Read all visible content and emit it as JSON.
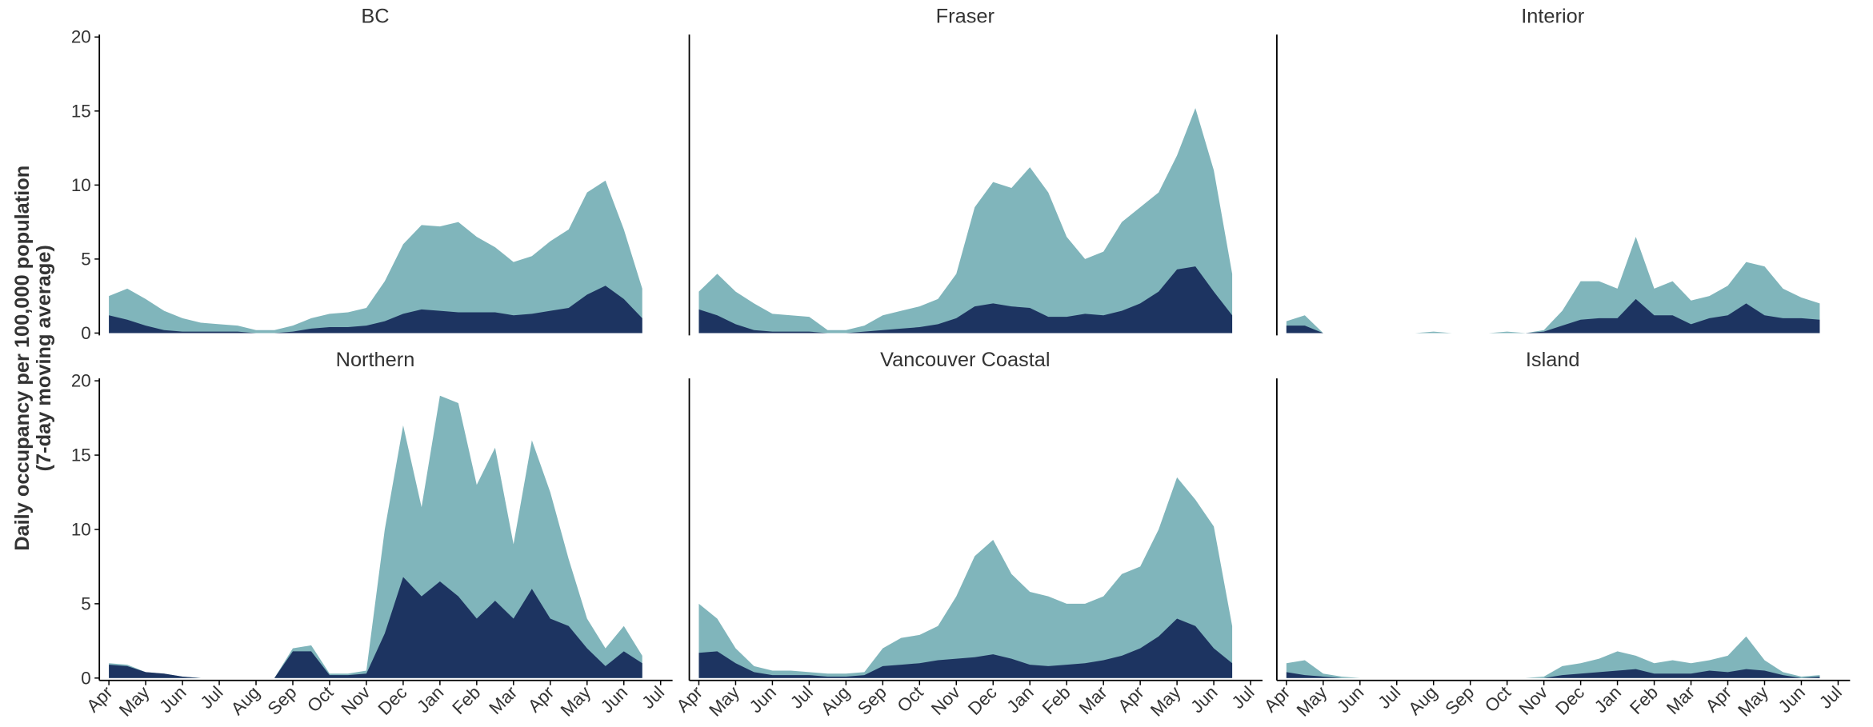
{
  "y_axis_title": [
    "Daily occupancy per 100,000 population",
    "(7-day moving average)"
  ],
  "chart_data": [
    {
      "type": "area",
      "title": "BC",
      "x": [
        0,
        0.5,
        1,
        1.5,
        2,
        2.5,
        3,
        3.5,
        4,
        4.5,
        5,
        5.5,
        6,
        6.5,
        7,
        7.5,
        8,
        8.5,
        9,
        9.5,
        10,
        10.5,
        11,
        11.5,
        12,
        12.5,
        13,
        13.5,
        14,
        14.5
      ],
      "series": [
        {
          "color": "#80b5bb",
          "values": [
            2.5,
            3.0,
            2.3,
            1.5,
            1.0,
            0.7,
            0.6,
            0.5,
            0.2,
            0.2,
            0.5,
            1.0,
            1.3,
            1.4,
            1.7,
            3.5,
            6.0,
            7.3,
            7.2,
            7.5,
            6.5,
            5.8,
            4.8,
            5.2,
            6.2,
            7.0,
            9.5,
            10.3,
            7.0,
            3.0
          ]
        },
        {
          "color": "#1d3461",
          "values": [
            1.2,
            0.9,
            0.5,
            0.2,
            0.1,
            0.1,
            0.1,
            0.1,
            0,
            0,
            0.1,
            0.3,
            0.4,
            0.4,
            0.5,
            0.8,
            1.3,
            1.6,
            1.5,
            1.4,
            1.4,
            1.4,
            1.2,
            1.3,
            1.5,
            1.7,
            2.6,
            3.2,
            2.3,
            1.0
          ]
        }
      ],
      "xlim": [
        0,
        15
      ],
      "ylim": [
        0,
        20
      ],
      "yticks": [
        0,
        5,
        10,
        15,
        20
      ]
    },
    {
      "type": "area",
      "title": "Fraser",
      "x": [
        0,
        0.5,
        1,
        1.5,
        2,
        2.5,
        3,
        3.5,
        4,
        4.5,
        5,
        5.5,
        6,
        6.5,
        7,
        7.5,
        8,
        8.5,
        9,
        9.5,
        10,
        10.5,
        11,
        11.5,
        12,
        12.5,
        13,
        13.5,
        14,
        14.5
      ],
      "series": [
        {
          "color": "#80b5bb",
          "values": [
            2.8,
            4.0,
            2.8,
            2.0,
            1.3,
            1.2,
            1.1,
            0.2,
            0.2,
            0.5,
            1.2,
            1.5,
            1.8,
            2.3,
            4.0,
            8.5,
            10.2,
            9.8,
            11.2,
            9.5,
            6.5,
            5.0,
            5.5,
            7.5,
            8.5,
            9.5,
            12.0,
            15.2,
            11.0,
            4.0
          ]
        },
        {
          "color": "#1d3461",
          "values": [
            1.6,
            1.2,
            0.6,
            0.2,
            0.1,
            0.1,
            0.1,
            0,
            0,
            0.1,
            0.2,
            0.3,
            0.4,
            0.6,
            1.0,
            1.8,
            2.0,
            1.8,
            1.7,
            1.1,
            1.1,
            1.3,
            1.2,
            1.5,
            2.0,
            2.8,
            4.3,
            4.5,
            2.8,
            1.2
          ]
        }
      ],
      "xlim": [
        0,
        15
      ],
      "ylim": [
        0,
        20
      ]
    },
    {
      "type": "area",
      "title": "Interior",
      "x": [
        0,
        0.5,
        1,
        1.5,
        2,
        2.5,
        3,
        3.5,
        4,
        4.5,
        5,
        5.5,
        6,
        6.5,
        7,
        7.5,
        8,
        8.5,
        9,
        9.5,
        10,
        10.5,
        11,
        11.5,
        12,
        12.5,
        13,
        13.5,
        14,
        14.5
      ],
      "series": [
        {
          "color": "#80b5bb",
          "values": [
            0.8,
            1.2,
            0,
            0,
            0,
            0,
            0,
            0,
            0.1,
            0,
            0,
            0,
            0.1,
            0,
            0.2,
            1.5,
            3.5,
            3.5,
            3.0,
            6.5,
            3.0,
            3.5,
            2.2,
            2.5,
            3.2,
            4.8,
            4.5,
            3.0,
            2.4,
            2.0
          ]
        },
        {
          "color": "#1d3461",
          "values": [
            0.5,
            0.5,
            0,
            0,
            0,
            0,
            0,
            0,
            0,
            0,
            0,
            0,
            0,
            0,
            0.1,
            0.5,
            0.9,
            1.0,
            1.0,
            2.3,
            1.2,
            1.2,
            0.6,
            1.0,
            1.2,
            2.0,
            1.2,
            1.0,
            1.0,
            0.9
          ]
        }
      ],
      "xlim": [
        0,
        15
      ],
      "ylim": [
        0,
        20
      ]
    },
    {
      "type": "area",
      "title": "Northern",
      "x": [
        0,
        0.5,
        1,
        1.5,
        2,
        2.5,
        3,
        3.5,
        4,
        4.5,
        5,
        5.5,
        6,
        6.5,
        7,
        7.5,
        8,
        8.5,
        9,
        9.5,
        10,
        10.5,
        11,
        11.5,
        12,
        12.5,
        13,
        13.5,
        14,
        14.5
      ],
      "series": [
        {
          "color": "#80b5bb",
          "values": [
            1.0,
            0.9,
            0.4,
            0.3,
            0.1,
            0,
            0,
            0,
            0,
            0,
            2.0,
            2.2,
            0.3,
            0.3,
            0.5,
            10,
            17,
            11.5,
            19,
            18.5,
            13,
            15.5,
            9,
            16,
            12.5,
            8,
            4,
            2,
            3.5,
            1.5
          ]
        },
        {
          "color": "#1d3461",
          "values": [
            0.9,
            0.8,
            0.4,
            0.3,
            0.1,
            0,
            0,
            0,
            0,
            0,
            1.8,
            1.8,
            0.2,
            0.2,
            0.3,
            3.0,
            6.8,
            5.5,
            6.5,
            5.5,
            4.0,
            5.2,
            4.0,
            6.0,
            4.0,
            3.5,
            2.0,
            0.8,
            1.8,
            1.0
          ]
        }
      ],
      "xlim": [
        0,
        15
      ],
      "ylim": [
        0,
        20
      ],
      "yticks": [
        0,
        5,
        10,
        15,
        20
      ],
      "xticks": [
        {
          "value": 0,
          "label": "Apr"
        },
        {
          "value": 1,
          "label": "May"
        },
        {
          "value": 2,
          "label": "Jun"
        },
        {
          "value": 3,
          "label": "Jul"
        },
        {
          "value": 4,
          "label": "Aug"
        },
        {
          "value": 5,
          "label": "Sep"
        },
        {
          "value": 6,
          "label": "Oct"
        },
        {
          "value": 7,
          "label": "Nov"
        },
        {
          "value": 8,
          "label": "Dec"
        },
        {
          "value": 9,
          "label": "Jan"
        },
        {
          "value": 10,
          "label": "Feb"
        },
        {
          "value": 11,
          "label": "Mar"
        },
        {
          "value": 12,
          "label": "Apr"
        },
        {
          "value": 13,
          "label": "May"
        },
        {
          "value": 14,
          "label": "Jun"
        },
        {
          "value": 15,
          "label": "Jul"
        }
      ]
    },
    {
      "type": "area",
      "title": "Vancouver Coastal",
      "x": [
        0,
        0.5,
        1,
        1.5,
        2,
        2.5,
        3,
        3.5,
        4,
        4.5,
        5,
        5.5,
        6,
        6.5,
        7,
        7.5,
        8,
        8.5,
        9,
        9.5,
        10,
        10.5,
        11,
        11.5,
        12,
        12.5,
        13,
        13.5,
        14,
        14.5
      ],
      "series": [
        {
          "color": "#80b5bb",
          "values": [
            5.0,
            4.0,
            2.0,
            0.8,
            0.5,
            0.5,
            0.4,
            0.3,
            0.3,
            0.4,
            2.0,
            2.7,
            2.9,
            3.5,
            5.5,
            8.2,
            9.3,
            7.0,
            5.8,
            5.5,
            5.0,
            5.0,
            5.5,
            7.0,
            7.5,
            10.0,
            13.5,
            12.0,
            10.2,
            3.5
          ]
        },
        {
          "color": "#1d3461",
          "values": [
            1.7,
            1.8,
            1.0,
            0.4,
            0.2,
            0.2,
            0.2,
            0.1,
            0.1,
            0.2,
            0.8,
            0.9,
            1.0,
            1.2,
            1.3,
            1.4,
            1.6,
            1.3,
            0.9,
            0.8,
            0.9,
            1.0,
            1.2,
            1.5,
            2.0,
            2.8,
            4.0,
            3.5,
            2.0,
            1.0
          ]
        }
      ],
      "xlim": [
        0,
        15
      ],
      "ylim": [
        0,
        20
      ],
      "xticks": [
        {
          "value": 0,
          "label": "Apr"
        },
        {
          "value": 1,
          "label": "May"
        },
        {
          "value": 2,
          "label": "Jun"
        },
        {
          "value": 3,
          "label": "Jul"
        },
        {
          "value": 4,
          "label": "Aug"
        },
        {
          "value": 5,
          "label": "Sep"
        },
        {
          "value": 6,
          "label": "Oct"
        },
        {
          "value": 7,
          "label": "Nov"
        },
        {
          "value": 8,
          "label": "Dec"
        },
        {
          "value": 9,
          "label": "Jan"
        },
        {
          "value": 10,
          "label": "Feb"
        },
        {
          "value": 11,
          "label": "Mar"
        },
        {
          "value": 12,
          "label": "Apr"
        },
        {
          "value": 13,
          "label": "May"
        },
        {
          "value": 14,
          "label": "Jun"
        },
        {
          "value": 15,
          "label": "Jul"
        }
      ]
    },
    {
      "type": "area",
      "title": "Island",
      "x": [
        0,
        0.5,
        1,
        1.5,
        2,
        2.5,
        3,
        3.5,
        4,
        4.5,
        5,
        5.5,
        6,
        6.5,
        7,
        7.5,
        8,
        8.5,
        9,
        9.5,
        10,
        10.5,
        11,
        11.5,
        12,
        12.5,
        13,
        13.5,
        14,
        14.5
      ],
      "series": [
        {
          "color": "#80b5bb",
          "values": [
            1.0,
            1.2,
            0.3,
            0.1,
            0,
            0,
            0,
            0,
            0,
            0,
            0,
            0,
            0,
            0,
            0.1,
            0.8,
            1.0,
            1.3,
            1.8,
            1.5,
            1.0,
            1.2,
            1.0,
            1.2,
            1.5,
            2.8,
            1.2,
            0.4,
            0.1,
            0.2
          ]
        },
        {
          "color": "#1d3461",
          "values": [
            0.4,
            0.2,
            0.1,
            0,
            0,
            0,
            0,
            0,
            0,
            0,
            0,
            0,
            0,
            0,
            0,
            0.2,
            0.3,
            0.4,
            0.5,
            0.6,
            0.3,
            0.3,
            0.3,
            0.5,
            0.4,
            0.6,
            0.5,
            0.2,
            0,
            0.1
          ]
        }
      ],
      "xlim": [
        0,
        15
      ],
      "ylim": [
        0,
        20
      ],
      "xticks": [
        {
          "value": 0,
          "label": "Apr"
        },
        {
          "value": 1,
          "label": "May"
        },
        {
          "value": 2,
          "label": "Jun"
        },
        {
          "value": 3,
          "label": "Jul"
        },
        {
          "value": 4,
          "label": "Aug"
        },
        {
          "value": 5,
          "label": "Sep"
        },
        {
          "value": 6,
          "label": "Oct"
        },
        {
          "value": 7,
          "label": "Nov"
        },
        {
          "value": 8,
          "label": "Dec"
        },
        {
          "value": 9,
          "label": "Jan"
        },
        {
          "value": 10,
          "label": "Feb"
        },
        {
          "value": 11,
          "label": "Mar"
        },
        {
          "value": 12,
          "label": "Apr"
        },
        {
          "value": 13,
          "label": "May"
        },
        {
          "value": 14,
          "label": "Jun"
        },
        {
          "value": 15,
          "label": "Jul"
        }
      ]
    }
  ]
}
